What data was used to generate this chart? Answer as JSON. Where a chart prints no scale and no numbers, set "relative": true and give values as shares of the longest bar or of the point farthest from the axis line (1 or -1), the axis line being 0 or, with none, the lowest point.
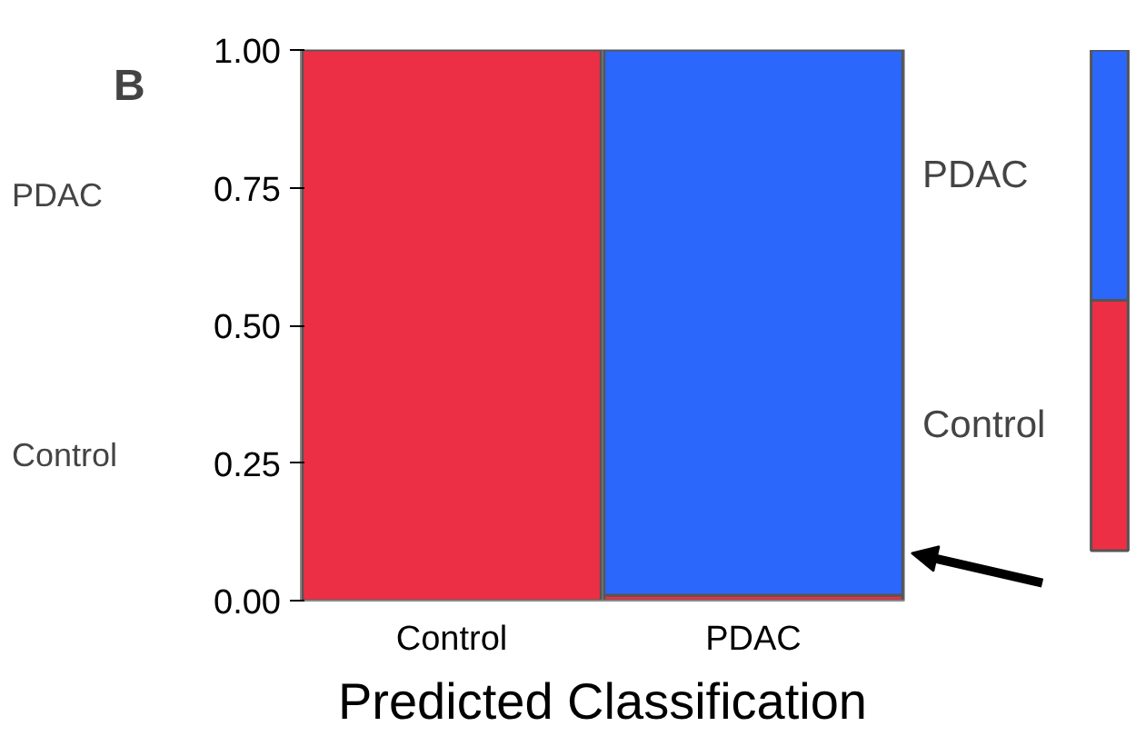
{
  "chart_data": [
    {
      "type": "bar",
      "stacked": true,
      "categories": [
        "Control",
        "PDAC"
      ],
      "xlabel": "Predicted Classification",
      "ylim": [
        0,
        1
      ],
      "yticks": [
        {
          "value": 0,
          "label": "0.00"
        },
        {
          "value": 0.25,
          "label": "0.25"
        },
        {
          "value": 0.5,
          "label": "0.50"
        },
        {
          "value": 0.75,
          "label": "0.75"
        },
        {
          "value": 1,
          "label": "1.00"
        }
      ],
      "grid": false,
      "series": [
        {
          "name": "Control",
          "color": "#ed2f45",
          "values": [
            1.0,
            0.01
          ]
        },
        {
          "name": "PDAC",
          "color": "#2b67fa",
          "values": [
            0,
            0.99
          ]
        }
      ],
      "annotations": [
        "B",
        "PDAC",
        "Control"
      ]
    },
    {
      "type": "bar",
      "stacked": true,
      "relative": true,
      "categories": [
        null
      ],
      "series": [
        {
          "color": "#ed2f45",
          "values": [
            0.5
          ]
        },
        {
          "color": "#2b67fa",
          "values": [
            0.5
          ]
        }
      ]
    }
  ]
}
